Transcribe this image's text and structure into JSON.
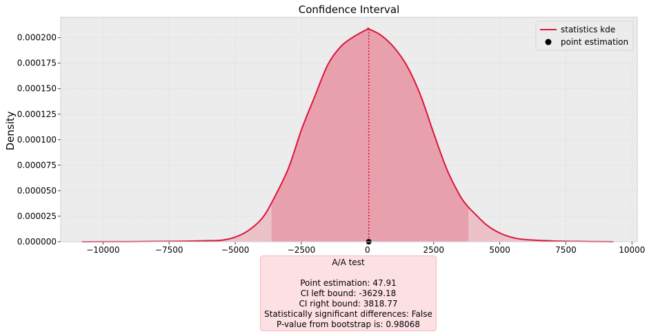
{
  "chart_data": {
    "type": "area",
    "title": "Confidence Interval",
    "xlabel": "",
    "ylabel": "Density",
    "xlim": [
      -11600,
      10200
    ],
    "ylim": [
      0,
      0.00022
    ],
    "x_ticks": [
      -10000,
      -7500,
      -5000,
      -2500,
      0,
      2500,
      5000,
      7500,
      10000
    ],
    "x_tick_labels": [
      "−10000",
      "−7500",
      "−5000",
      "−2500",
      "0",
      "2500",
      "5000",
      "7500",
      "10000"
    ],
    "y_ticks": [
      0,
      2.5e-05,
      5e-05,
      7.5e-05,
      0.0001,
      0.000125,
      0.00015,
      0.000175,
      0.0002
    ],
    "y_tick_labels": [
      "0.000000",
      "0.000025",
      "0.000050",
      "0.000075",
      "0.000100",
      "0.000125",
      "0.000150",
      "0.000175",
      "0.000200"
    ],
    "grid": true,
    "legend_position": "top-right",
    "colors": {
      "line": "#dc143c",
      "ci_fill": "#e8a0ad",
      "tail_fill": "#ecc2c9",
      "background": "#ececec"
    },
    "series": [
      {
        "name": "statistics kde",
        "x": [
          -10800,
          -9000,
          -8000,
          -7000,
          -6000,
          -5500,
          -5000,
          -4500,
          -4000,
          -3629.18,
          -3000,
          -2500,
          -2000,
          -1500,
          -1000,
          -500,
          0,
          47.91,
          500,
          1000,
          1500,
          2000,
          2500,
          3000,
          3500,
          3818.77,
          4000,
          4500,
          5000,
          5500,
          6000,
          7000,
          8000,
          9000,
          9300
        ],
        "y": [
          0,
          1e-07,
          3e-07,
          5e-07,
          1e-06,
          1.5e-06,
          4.5e-06,
          1.1e-05,
          2.25e-05,
          3.8e-05,
          7.13e-05,
          0.0001095,
          0.000142,
          0.0001735,
          0.0001915,
          0.0002012,
          0.0002083,
          0.0002085,
          0.0002025,
          0.0001905,
          0.000172,
          0.0001438,
          0.0001065,
          7.1e-05,
          4.5e-05,
          3.38e-05,
          2.9e-05,
          1.65e-05,
          8.5e-06,
          4e-06,
          2e-06,
          8e-07,
          3e-07,
          1e-07,
          0
        ]
      }
    ],
    "point_estimation": {
      "name": "point estimation",
      "x": 47.91,
      "y": 0
    },
    "ci": {
      "left": -3629.18,
      "right": 3818.77
    },
    "summary": {
      "title": "A/A test",
      "point_estimation": "Point estimation: 47.91",
      "ci_left": "CI left bound: -3629.18",
      "ci_right": "CI right bound: 3818.77",
      "significance": "Statistically significant differences: False",
      "p_value": "P-value from bootstrap is: 0.98068"
    }
  }
}
